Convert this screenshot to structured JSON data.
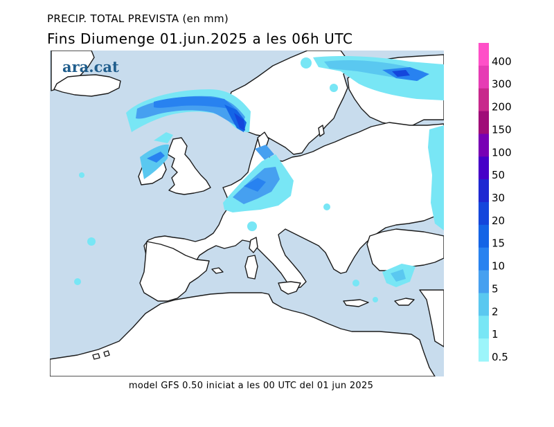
{
  "header": {
    "title_line1": "PRECIP. TOTAL PREVISTA (en mm)",
    "title_line2": "Fins Diumenge 01.jun.2025  a les 06h UTC"
  },
  "footer": {
    "caption": "model GFS 0.50 iniciat a les 00 UTC del 01 jun 2025"
  },
  "map": {
    "logo_text": "ara.cat",
    "sea_color": "#c8dced",
    "land_color": "#ffffff"
  },
  "legend": {
    "levels": [
      {
        "label": "400",
        "color": "#ff50c8"
      },
      {
        "label": "300",
        "color": "#e63cb4"
      },
      {
        "label": "200",
        "color": "#c8288c"
      },
      {
        "label": "150",
        "color": "#a00c78"
      },
      {
        "label": "100",
        "color": "#7800b4"
      },
      {
        "label": "50",
        "color": "#4600c8"
      },
      {
        "label": "30",
        "color": "#1e28d2"
      },
      {
        "label": "20",
        "color": "#1446dc"
      },
      {
        "label": "15",
        "color": "#1464e6"
      },
      {
        "label": "10",
        "color": "#2882f0"
      },
      {
        "label": "5",
        "color": "#46a0f0"
      },
      {
        "label": "2",
        "color": "#5ac8f0"
      },
      {
        "label": "1",
        "color": "#78e6f5"
      },
      {
        "label": "0.5",
        "color": "#9cf5fa"
      }
    ]
  }
}
